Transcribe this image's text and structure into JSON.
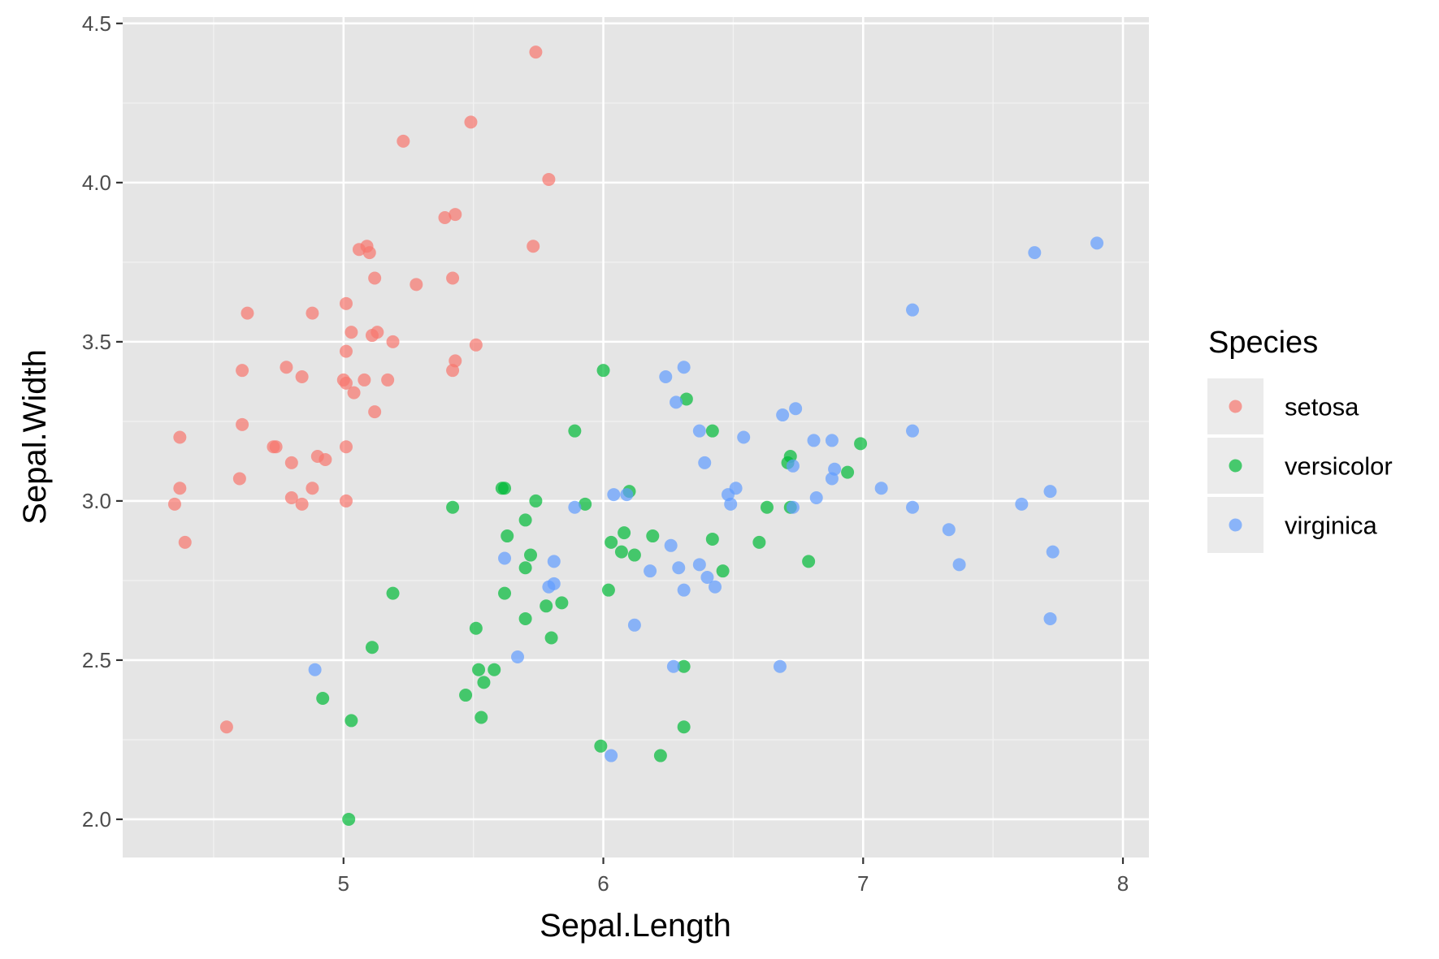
{
  "chart_data": {
    "type": "scatter",
    "xlabel": "Sepal.Length",
    "ylabel": "Sepal.Width",
    "xlim": [
      4.15,
      8.1
    ],
    "ylim": [
      1.88,
      4.52
    ],
    "x_ticks": [
      5,
      6,
      7,
      8
    ],
    "x_tick_labels": [
      "5",
      "6",
      "7",
      "8"
    ],
    "y_ticks": [
      2.0,
      2.5,
      3.0,
      3.5,
      4.0,
      4.5
    ],
    "y_tick_labels": [
      "2.0",
      "2.5",
      "3.0",
      "3.5",
      "4.0",
      "4.5"
    ],
    "grid": true,
    "background": "#e5e5e5",
    "legend": {
      "title": "Species",
      "position": "right"
    },
    "series": [
      {
        "name": "setosa",
        "color": "#f8766d",
        "points": [
          [
            5.74,
            4.41
          ],
          [
            5.49,
            4.19
          ],
          [
            5.23,
            4.13
          ],
          [
            5.79,
            4.01
          ],
          [
            5.39,
            3.89
          ],
          [
            5.43,
            3.9
          ],
          [
            5.73,
            3.8
          ],
          [
            5.06,
            3.79
          ],
          [
            5.09,
            3.8
          ],
          [
            5.1,
            3.78
          ],
          [
            5.12,
            3.7
          ],
          [
            5.42,
            3.7
          ],
          [
            5.28,
            3.68
          ],
          [
            4.63,
            3.59
          ],
          [
            4.88,
            3.59
          ],
          [
            5.01,
            3.62
          ],
          [
            5.03,
            3.53
          ],
          [
            5.11,
            3.52
          ],
          [
            5.13,
            3.53
          ],
          [
            5.19,
            3.5
          ],
          [
            5.51,
            3.49
          ],
          [
            5.01,
            3.47
          ],
          [
            5.43,
            3.44
          ],
          [
            4.61,
            3.41
          ],
          [
            4.78,
            3.42
          ],
          [
            4.84,
            3.39
          ],
          [
            5.0,
            3.38
          ],
          [
            5.01,
            3.37
          ],
          [
            5.08,
            3.38
          ],
          [
            5.17,
            3.38
          ],
          [
            5.42,
            3.41
          ],
          [
            5.04,
            3.34
          ],
          [
            5.12,
            3.28
          ],
          [
            4.61,
            3.24
          ],
          [
            4.37,
            3.2
          ],
          [
            4.73,
            3.17
          ],
          [
            4.74,
            3.17
          ],
          [
            4.8,
            3.12
          ],
          [
            4.9,
            3.14
          ],
          [
            4.93,
            3.13
          ],
          [
            5.01,
            3.17
          ],
          [
            4.6,
            3.07
          ],
          [
            4.37,
            3.04
          ],
          [
            4.88,
            3.04
          ],
          [
            4.8,
            3.01
          ],
          [
            4.84,
            2.99
          ],
          [
            5.01,
            3.0
          ],
          [
            4.35,
            2.99
          ],
          [
            4.39,
            2.87
          ],
          [
            4.55,
            2.29
          ]
        ]
      },
      {
        "name": "versicolor",
        "color": "#00ba38",
        "points": [
          [
            6.0,
            3.41
          ],
          [
            6.32,
            3.32
          ],
          [
            6.42,
            3.22
          ],
          [
            5.89,
            3.22
          ],
          [
            6.99,
            3.18
          ],
          [
            6.72,
            3.14
          ],
          [
            6.71,
            3.12
          ],
          [
            6.94,
            3.09
          ],
          [
            5.61,
            3.04
          ],
          [
            5.62,
            3.04
          ],
          [
            6.1,
            3.03
          ],
          [
            5.74,
            3.0
          ],
          [
            5.42,
            2.98
          ],
          [
            6.63,
            2.98
          ],
          [
            6.72,
            2.98
          ],
          [
            5.93,
            2.99
          ],
          [
            5.7,
            2.94
          ],
          [
            5.63,
            2.89
          ],
          [
            6.08,
            2.9
          ],
          [
            6.19,
            2.89
          ],
          [
            6.42,
            2.88
          ],
          [
            6.6,
            2.87
          ],
          [
            6.03,
            2.87
          ],
          [
            6.07,
            2.84
          ],
          [
            6.12,
            2.83
          ],
          [
            5.72,
            2.83
          ],
          [
            5.7,
            2.79
          ],
          [
            6.46,
            2.78
          ],
          [
            6.79,
            2.81
          ],
          [
            5.62,
            2.71
          ],
          [
            6.02,
            2.72
          ],
          [
            5.84,
            2.68
          ],
          [
            5.78,
            2.67
          ],
          [
            5.7,
            2.63
          ],
          [
            5.19,
            2.71
          ],
          [
            5.51,
            2.6
          ],
          [
            5.8,
            2.57
          ],
          [
            5.11,
            2.54
          ],
          [
            5.52,
            2.47
          ],
          [
            5.58,
            2.47
          ],
          [
            6.31,
            2.48
          ],
          [
            5.54,
            2.43
          ],
          [
            5.47,
            2.39
          ],
          [
            4.92,
            2.38
          ],
          [
            5.03,
            2.31
          ],
          [
            5.53,
            2.32
          ],
          [
            6.31,
            2.29
          ],
          [
            5.99,
            2.23
          ],
          [
            6.22,
            2.2
          ],
          [
            5.02,
            2.0
          ]
        ]
      },
      {
        "name": "virginica",
        "color": "#619cff",
        "points": [
          [
            7.9,
            3.81
          ],
          [
            7.66,
            3.78
          ],
          [
            7.19,
            3.6
          ],
          [
            6.31,
            3.42
          ],
          [
            6.24,
            3.39
          ],
          [
            6.28,
            3.31
          ],
          [
            6.74,
            3.29
          ],
          [
            6.69,
            3.27
          ],
          [
            6.37,
            3.22
          ],
          [
            6.54,
            3.2
          ],
          [
            7.19,
            3.22
          ],
          [
            6.81,
            3.19
          ],
          [
            6.88,
            3.19
          ],
          [
            6.39,
            3.12
          ],
          [
            6.73,
            3.11
          ],
          [
            6.89,
            3.1
          ],
          [
            6.88,
            3.07
          ],
          [
            7.07,
            3.04
          ],
          [
            6.51,
            3.04
          ],
          [
            6.48,
            3.02
          ],
          [
            6.04,
            3.02
          ],
          [
            6.09,
            3.02
          ],
          [
            6.82,
            3.01
          ],
          [
            7.72,
            3.03
          ],
          [
            6.49,
            2.99
          ],
          [
            7.61,
            2.99
          ],
          [
            6.73,
            2.98
          ],
          [
            7.19,
            2.98
          ],
          [
            5.89,
            2.98
          ],
          [
            7.33,
            2.91
          ],
          [
            6.26,
            2.86
          ],
          [
            7.73,
            2.84
          ],
          [
            5.62,
            2.82
          ],
          [
            5.81,
            2.81
          ],
          [
            6.37,
            2.8
          ],
          [
            7.37,
            2.8
          ],
          [
            6.29,
            2.79
          ],
          [
            6.18,
            2.78
          ],
          [
            6.4,
            2.76
          ],
          [
            5.79,
            2.73
          ],
          [
            5.81,
            2.74
          ],
          [
            6.43,
            2.73
          ],
          [
            6.31,
            2.72
          ],
          [
            7.72,
            2.63
          ],
          [
            6.12,
            2.61
          ],
          [
            5.67,
            2.51
          ],
          [
            6.68,
            2.48
          ],
          [
            6.27,
            2.48
          ],
          [
            4.89,
            2.47
          ],
          [
            6.03,
            2.2
          ]
        ]
      }
    ]
  }
}
